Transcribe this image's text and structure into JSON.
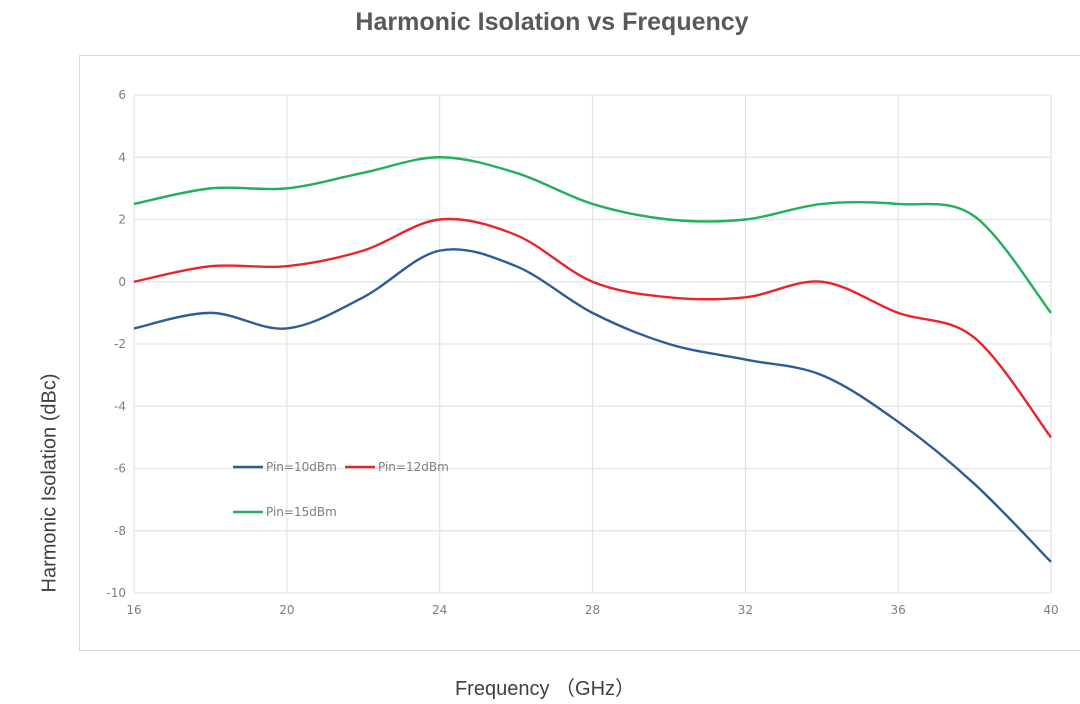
{
  "chart_data": {
    "type": "line",
    "title": "Harmonic Isolation vs Frequency",
    "xlabel": "Frequency （GHz）",
    "ylabel": "Harmonic Isolation  (dBc)",
    "xlim": [
      16,
      40
    ],
    "ylim": [
      -10,
      6
    ],
    "xticks": [
      16,
      20,
      24,
      28,
      32,
      36,
      40
    ],
    "yticks": [
      6,
      4,
      2,
      0,
      -2,
      -4,
      -6,
      -8,
      -10
    ],
    "grid": true,
    "smooth": true,
    "legend_position": "lower-left inside plot",
    "x": [
      16,
      18,
      20,
      22,
      24,
      26,
      28,
      30,
      32,
      34,
      36,
      38,
      40
    ],
    "series": [
      {
        "name": "Pin=10dBm",
        "color": "#2e5b9a",
        "values": [
          -1.5,
          -1.0,
          -1.5,
          -0.5,
          1.0,
          0.5,
          -1.0,
          -2.0,
          -2.5,
          -3.0,
          -4.5,
          -6.5,
          -9.0
        ]
      },
      {
        "name": "Pin=12dBm",
        "color": "#e8262a",
        "values": [
          0.0,
          0.5,
          0.5,
          1.0,
          2.0,
          1.5,
          0.0,
          -0.5,
          -0.5,
          0.0,
          -1.0,
          -1.8,
          -5.0
        ]
      },
      {
        "name": "Pin=15dBm",
        "color": "#22b05a",
        "values": [
          2.5,
          3.0,
          3.0,
          3.5,
          4.0,
          3.5,
          2.5,
          2.0,
          2.0,
          2.5,
          2.5,
          2.1,
          -1.0
        ]
      }
    ]
  }
}
